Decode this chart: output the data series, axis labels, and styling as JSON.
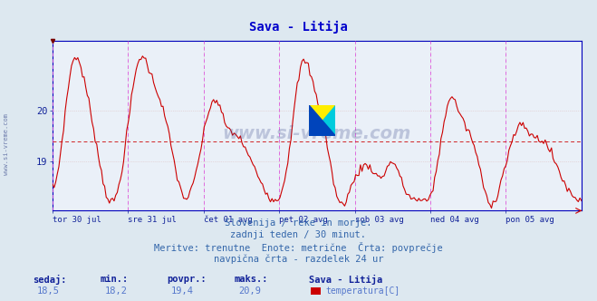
{
  "title": "Sava - Litija",
  "title_color": "#0000cc",
  "title_fontsize": 10,
  "bg_color": "#dde8f0",
  "plot_bg_color": "#eaf0f8",
  "line_color": "#cc0000",
  "avg_value": 19.4,
  "ymin": 18.05,
  "ymax": 21.35,
  "yticks": [
    19,
    20
  ],
  "day_labels": [
    "tor 30 jul",
    "sre 31 jul",
    "čet 01 avg",
    "pet 02 avg",
    "sob 03 avg",
    "ned 04 avg",
    "pon 05 avg"
  ],
  "vline_color": "#dd55dd",
  "grid_color": "#cc9999",
  "grid_dotted_color": "#ddbbbb",
  "footer_lines": [
    "Slovenija / reke in morje.",
    "zadnji teden / 30 minut.",
    "Meritve: trenutne  Enote: metrične  Črta: povprečje",
    "navpična črta - razdelek 24 ur"
  ],
  "footer_color": "#3366aa",
  "footer_fontsize": 7.5,
  "stat_labels": [
    "sedaj:",
    "min.:",
    "povpr.:",
    "maks.:"
  ],
  "stat_values": [
    "18,5",
    "18,2",
    "19,4",
    "20,9"
  ],
  "stat_label_color": "#112299",
  "stat_value_color": "#5577cc",
  "legend_station": "Sava - Litija",
  "legend_label": "temperatura[C]",
  "legend_rect_color": "#cc0000",
  "watermark": "www.si-vreme.com",
  "watermark_color": "#334488",
  "spine_color": "#0000bb",
  "n_days": 7,
  "points_per_day": 48
}
